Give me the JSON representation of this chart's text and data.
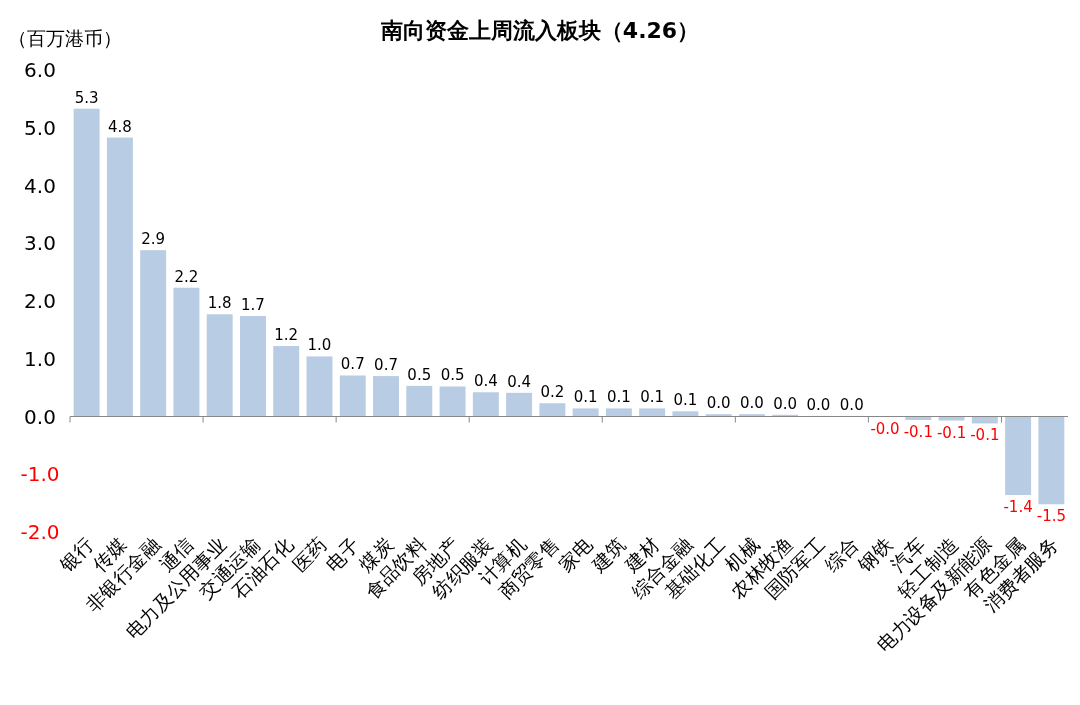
{
  "chart_data": {
    "type": "bar",
    "title": "南向资金上周流入板块（4.26）",
    "ylabel": "（百万港币）",
    "categories": [
      "银行",
      "传媒",
      "非银行金融",
      "通信",
      "电力及公用事业",
      "交通运输",
      "石油石化",
      "医药",
      "电子",
      "煤炭",
      "食品饮料",
      "房地产",
      "纺织服装",
      "计算机",
      "商贸零售",
      "家电",
      "建筑",
      "建材",
      "综合金融",
      "基础化工",
      "机械",
      "农林牧渔",
      "国防军工",
      "综合",
      "钢铁",
      "汽车",
      "轻工制造",
      "电力设备及新能源",
      "有色金属",
      "消费者服务"
    ],
    "values": [
      5.33,
      4.83,
      2.88,
      2.23,
      1.77,
      1.74,
      1.22,
      1.04,
      0.71,
      0.7,
      0.53,
      0.52,
      0.42,
      0.41,
      0.23,
      0.14,
      0.14,
      0.14,
      0.09,
      0.04,
      0.04,
      0.03,
      0.01,
      0.01,
      -0.01,
      -0.06,
      -0.07,
      -0.12,
      -1.36,
      -1.52
    ],
    "value_labels": [
      "5.3",
      "4.8",
      "2.9",
      "2.2",
      "1.8",
      "1.7",
      "1.2",
      "1.0",
      "0.7",
      "0.7",
      "0.5",
      "0.5",
      "0.4",
      "0.4",
      "0.2",
      "0.1",
      "0.1",
      "0.1",
      "0.1",
      "0.0",
      "0.0",
      "0.0",
      "0.0",
      "0.0",
      "-0.0",
      "-0.1",
      "-0.1",
      "-0.1",
      "-1.4",
      "-1.5"
    ],
    "color": "#b8cce4",
    "ylim": [
      -2,
      6
    ],
    "yticks": [
      {
        "value": 6,
        "label": "6.0"
      },
      {
        "value": 5,
        "label": "5.0"
      },
      {
        "value": 4,
        "label": "4.0"
      },
      {
        "value": 3,
        "label": "3.0"
      },
      {
        "value": 2,
        "label": "2.0"
      },
      {
        "value": 1,
        "label": "1.0"
      },
      {
        "value": 0,
        "label": "0.0"
      },
      {
        "value": -1,
        "label": "-1.0"
      },
      {
        "value": -2,
        "label": "-2.0"
      }
    ]
  }
}
